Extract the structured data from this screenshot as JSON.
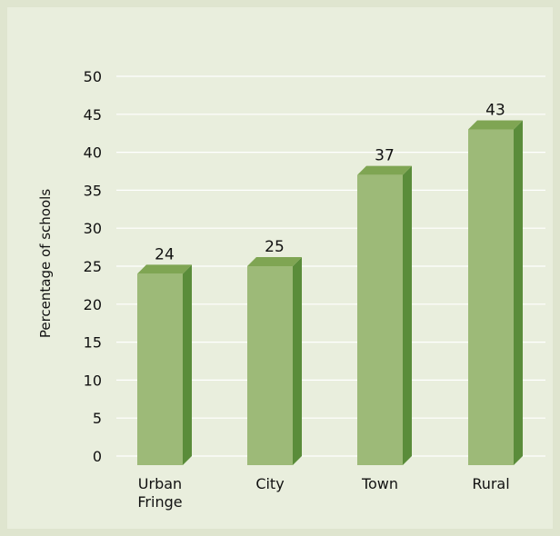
{
  "chart_data": {
    "type": "bar",
    "categories": [
      "Urban Fringe",
      "City",
      "Town",
      "Rural"
    ],
    "category_lines": [
      [
        "Urban",
        "Fringe"
      ],
      [
        "City"
      ],
      [
        "Town"
      ],
      [
        "Rural"
      ]
    ],
    "values": [
      24,
      25,
      37,
      43
    ],
    "data_labels": [
      "24",
      "25",
      "37",
      "43"
    ],
    "title": "",
    "xlabel": "",
    "ylabel": "Percentage of schools",
    "ylim": [
      0,
      50
    ],
    "yticks": [
      0,
      5,
      10,
      15,
      20,
      25,
      30,
      35,
      40,
      45,
      50
    ],
    "grid": true,
    "legend": "none",
    "colors": {
      "bar_front": "#9dba78",
      "bar_side": "#5a8c3a",
      "bar_top": "#7fa553",
      "grid": "#ffffff",
      "background": "#e9eedd",
      "border": "#dfe5cf"
    }
  }
}
